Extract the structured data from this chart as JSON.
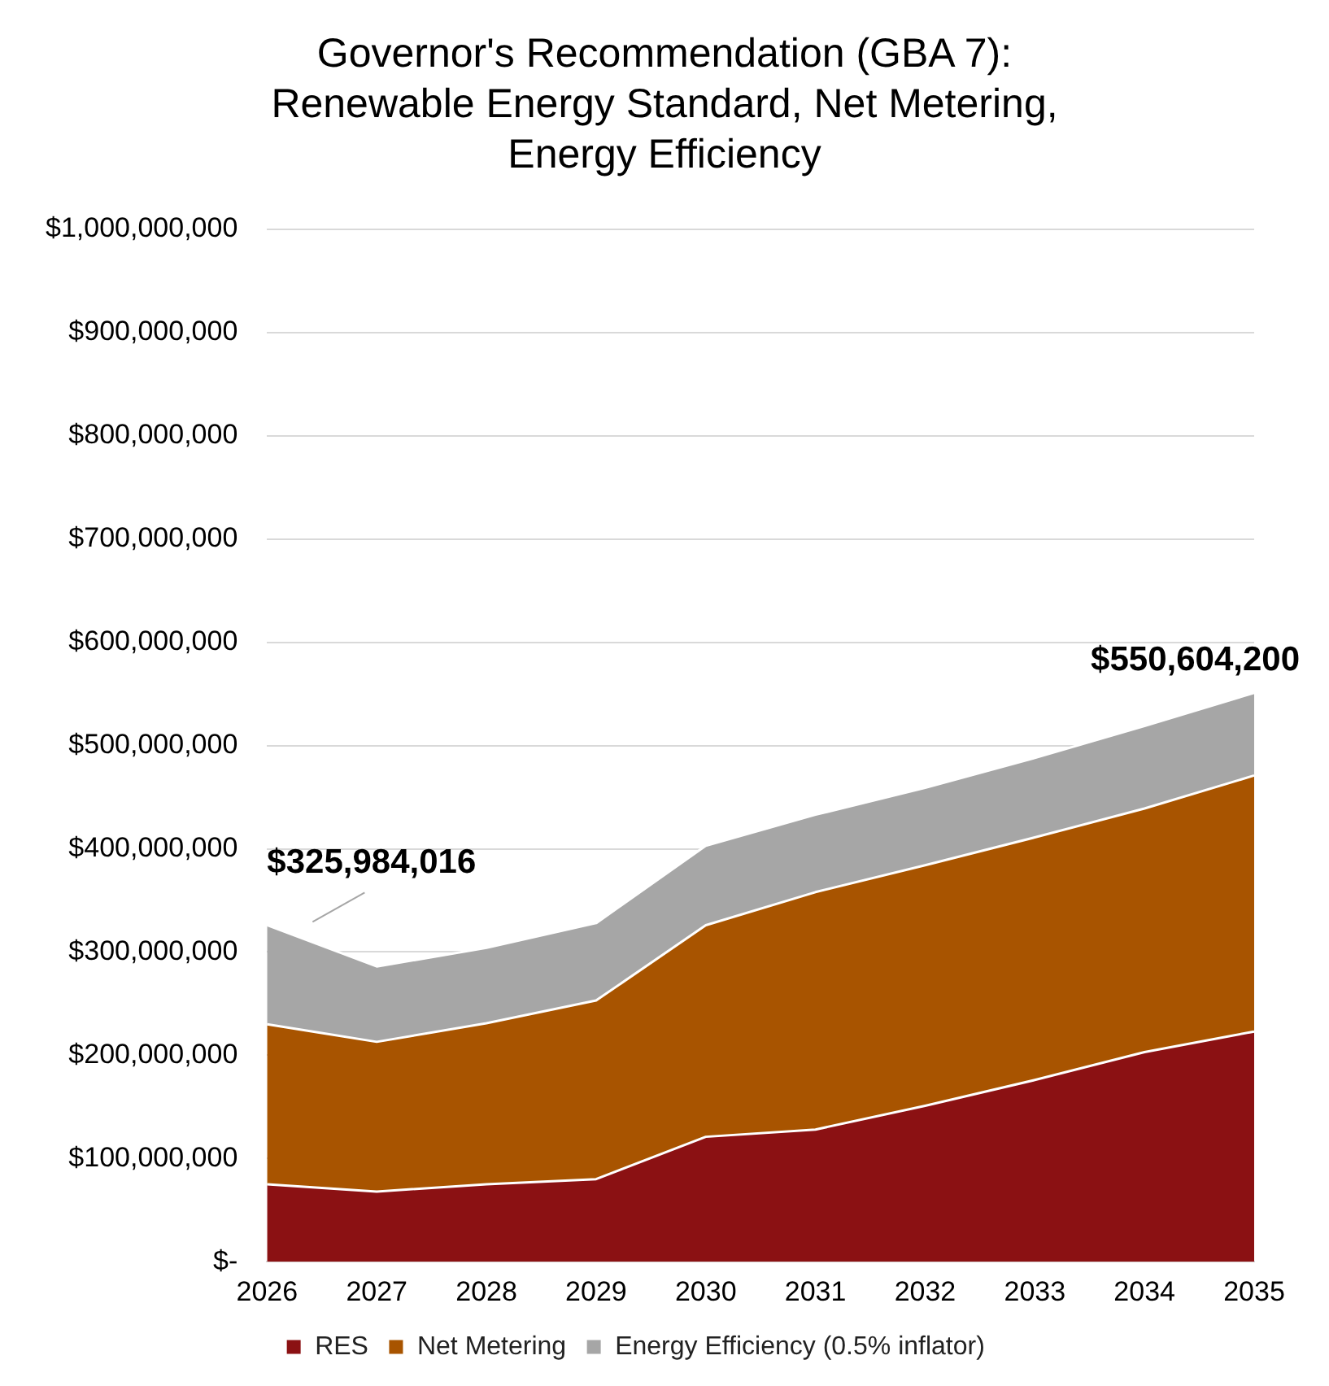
{
  "chart_data": {
    "type": "area",
    "title": "Governor's Recommendation (GBA 7):\nRenewable Energy Standard, Net Metering,\nEnergy Efficiency",
    "stacked": true,
    "categories": [
      "2026",
      "2027",
      "2028",
      "2029",
      "2030",
      "2031",
      "2032",
      "2033",
      "2034",
      "2035"
    ],
    "series": [
      {
        "name": "RES",
        "color": "#8b1113",
        "values": [
          75000000,
          68000000,
          75000000,
          80000000,
          121000000,
          128000000,
          151000000,
          176000000,
          203000000,
          223000000
        ]
      },
      {
        "name": "Net Metering",
        "color": "#a85400",
        "values": [
          155000000,
          145000000,
          156000000,
          173000000,
          205000000,
          230000000,
          233000000,
          235000000,
          236000000,
          248000000
        ]
      },
      {
        "name": "Energy Efficiency (0.5% inflator)",
        "color": "#a6a6a6",
        "values": [
          96000000,
          73000000,
          73000000,
          75000000,
          77000000,
          75000000,
          75000000,
          77000000,
          80000000,
          80000000
        ]
      }
    ],
    "ylim": [
      0,
      1000000000
    ],
    "yticks": [
      {
        "value": 0,
        "label": "$-"
      },
      {
        "value": 100000000,
        "label": "$100,000,000"
      },
      {
        "value": 200000000,
        "label": "$200,000,000"
      },
      {
        "value": 300000000,
        "label": "$300,000,000"
      },
      {
        "value": 400000000,
        "label": "$400,000,000"
      },
      {
        "value": 500000000,
        "label": "$500,000,000"
      },
      {
        "value": 600000000,
        "label": "$600,000,000"
      },
      {
        "value": 700000000,
        "label": "$700,000,000"
      },
      {
        "value": 800000000,
        "label": "$800,000,000"
      },
      {
        "value": 900000000,
        "label": "$900,000,000"
      },
      {
        "value": 1000000000,
        "label": "$1,000,000,000"
      }
    ],
    "grid": "y",
    "legend": "bottom",
    "annotations": [
      {
        "text": "$325,984,016",
        "x": "2026",
        "y": 325984016
      },
      {
        "text": "$550,604,200",
        "x": "2035",
        "y": 550604200
      }
    ]
  }
}
